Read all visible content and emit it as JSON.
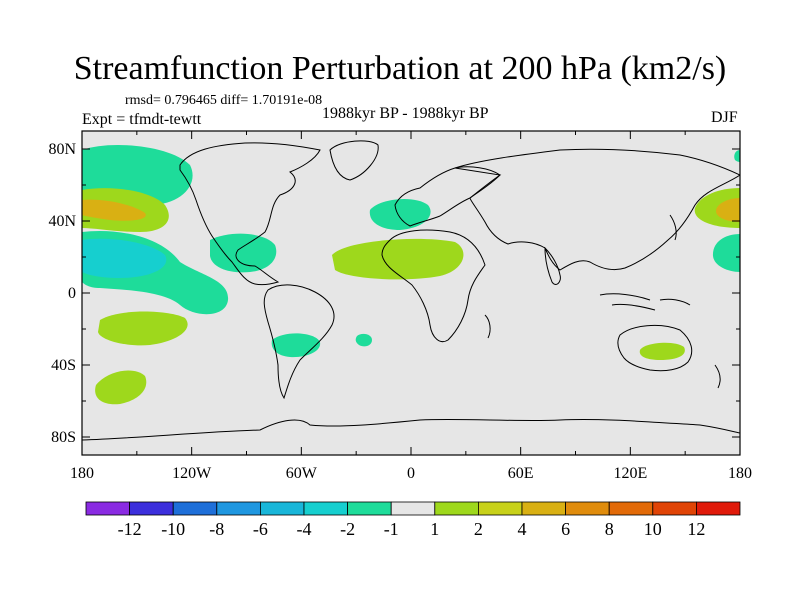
{
  "header": {
    "title": "Streamfunction Perturbation at 200 hPa (km2/s)",
    "stats": "rmsd= 0.796465 diff= 1.70191e-08",
    "experiment": "Expt = tfmdt-tewtt",
    "period": "1988kyr BP - 1988kyr BP",
    "season": "DJF"
  },
  "axes": {
    "lat_labels": [
      "80N",
      "40N",
      "0",
      "40S",
      "80S"
    ],
    "lon_labels": [
      "180",
      "120W",
      "60W",
      "0",
      "60E",
      "120E",
      "180"
    ],
    "lat_values": [
      80,
      40,
      0,
      -40,
      -80
    ],
    "lon_values": [
      -180,
      -120,
      -60,
      0,
      60,
      120,
      180
    ],
    "lat_range": [
      -90,
      90
    ],
    "lon_range": [
      -180,
      180
    ]
  },
  "colorbar": {
    "labels": [
      "-12",
      "-10",
      "-8",
      "-6",
      "-4",
      "-2",
      "-1",
      "1",
      "2",
      "4",
      "6",
      "8",
      "10",
      "12"
    ],
    "colors": [
      "#8a2be2",
      "#3c2fdc",
      "#1e6fd9",
      "#1f97e0",
      "#19b6d9",
      "#16cfcf",
      "#1edc9a",
      "#e6e6e6",
      "#9ed81c",
      "#c8d11a",
      "#d9b013",
      "#e08c0c",
      "#e26a08",
      "#e04406",
      "#e01a0a"
    ]
  },
  "colors": {
    "ocean": "#e6e6e6",
    "coast": "#000000",
    "neg_light": "#1edc9a",
    "neg_mid": "#16cfcf",
    "pos_light": "#9ed81c",
    "pos_mid": "#c8d11a",
    "pos_strong": "#d9b013"
  },
  "anomalies": [
    {
      "sign": "neg",
      "level": 1,
      "lon": -135,
      "lat": 75
    },
    {
      "sign": "pos",
      "level": 2,
      "lon": -165,
      "lat": 48
    },
    {
      "sign": "neg",
      "level": 2,
      "lon": -160,
      "lat": 22
    },
    {
      "sign": "pos",
      "level": 1,
      "lon": -150,
      "lat": -15
    },
    {
      "sign": "neg",
      "level": 1,
      "lon": -90,
      "lat": 25
    },
    {
      "sign": "neg",
      "level": 1,
      "lon": -15,
      "lat": 43
    },
    {
      "sign": "pos",
      "level": 1,
      "lon": 0,
      "lat": 18
    },
    {
      "sign": "neg",
      "level": 1,
      "lon": -80,
      "lat": -27
    },
    {
      "sign": "neg",
      "level": 1,
      "lon": -45,
      "lat": -22
    },
    {
      "sign": "pos",
      "level": 1,
      "lon": -150,
      "lat": -52
    },
    {
      "sign": "pos",
      "level": 1,
      "lon": 142,
      "lat": -28
    },
    {
      "sign": "pos",
      "level": 2,
      "lon": 170,
      "lat": 45
    },
    {
      "sign": "neg",
      "level": 2,
      "lon": 175,
      "lat": 18
    },
    {
      "sign": "neg",
      "level": 1,
      "lon": 180,
      "lat": 75
    }
  ]
}
